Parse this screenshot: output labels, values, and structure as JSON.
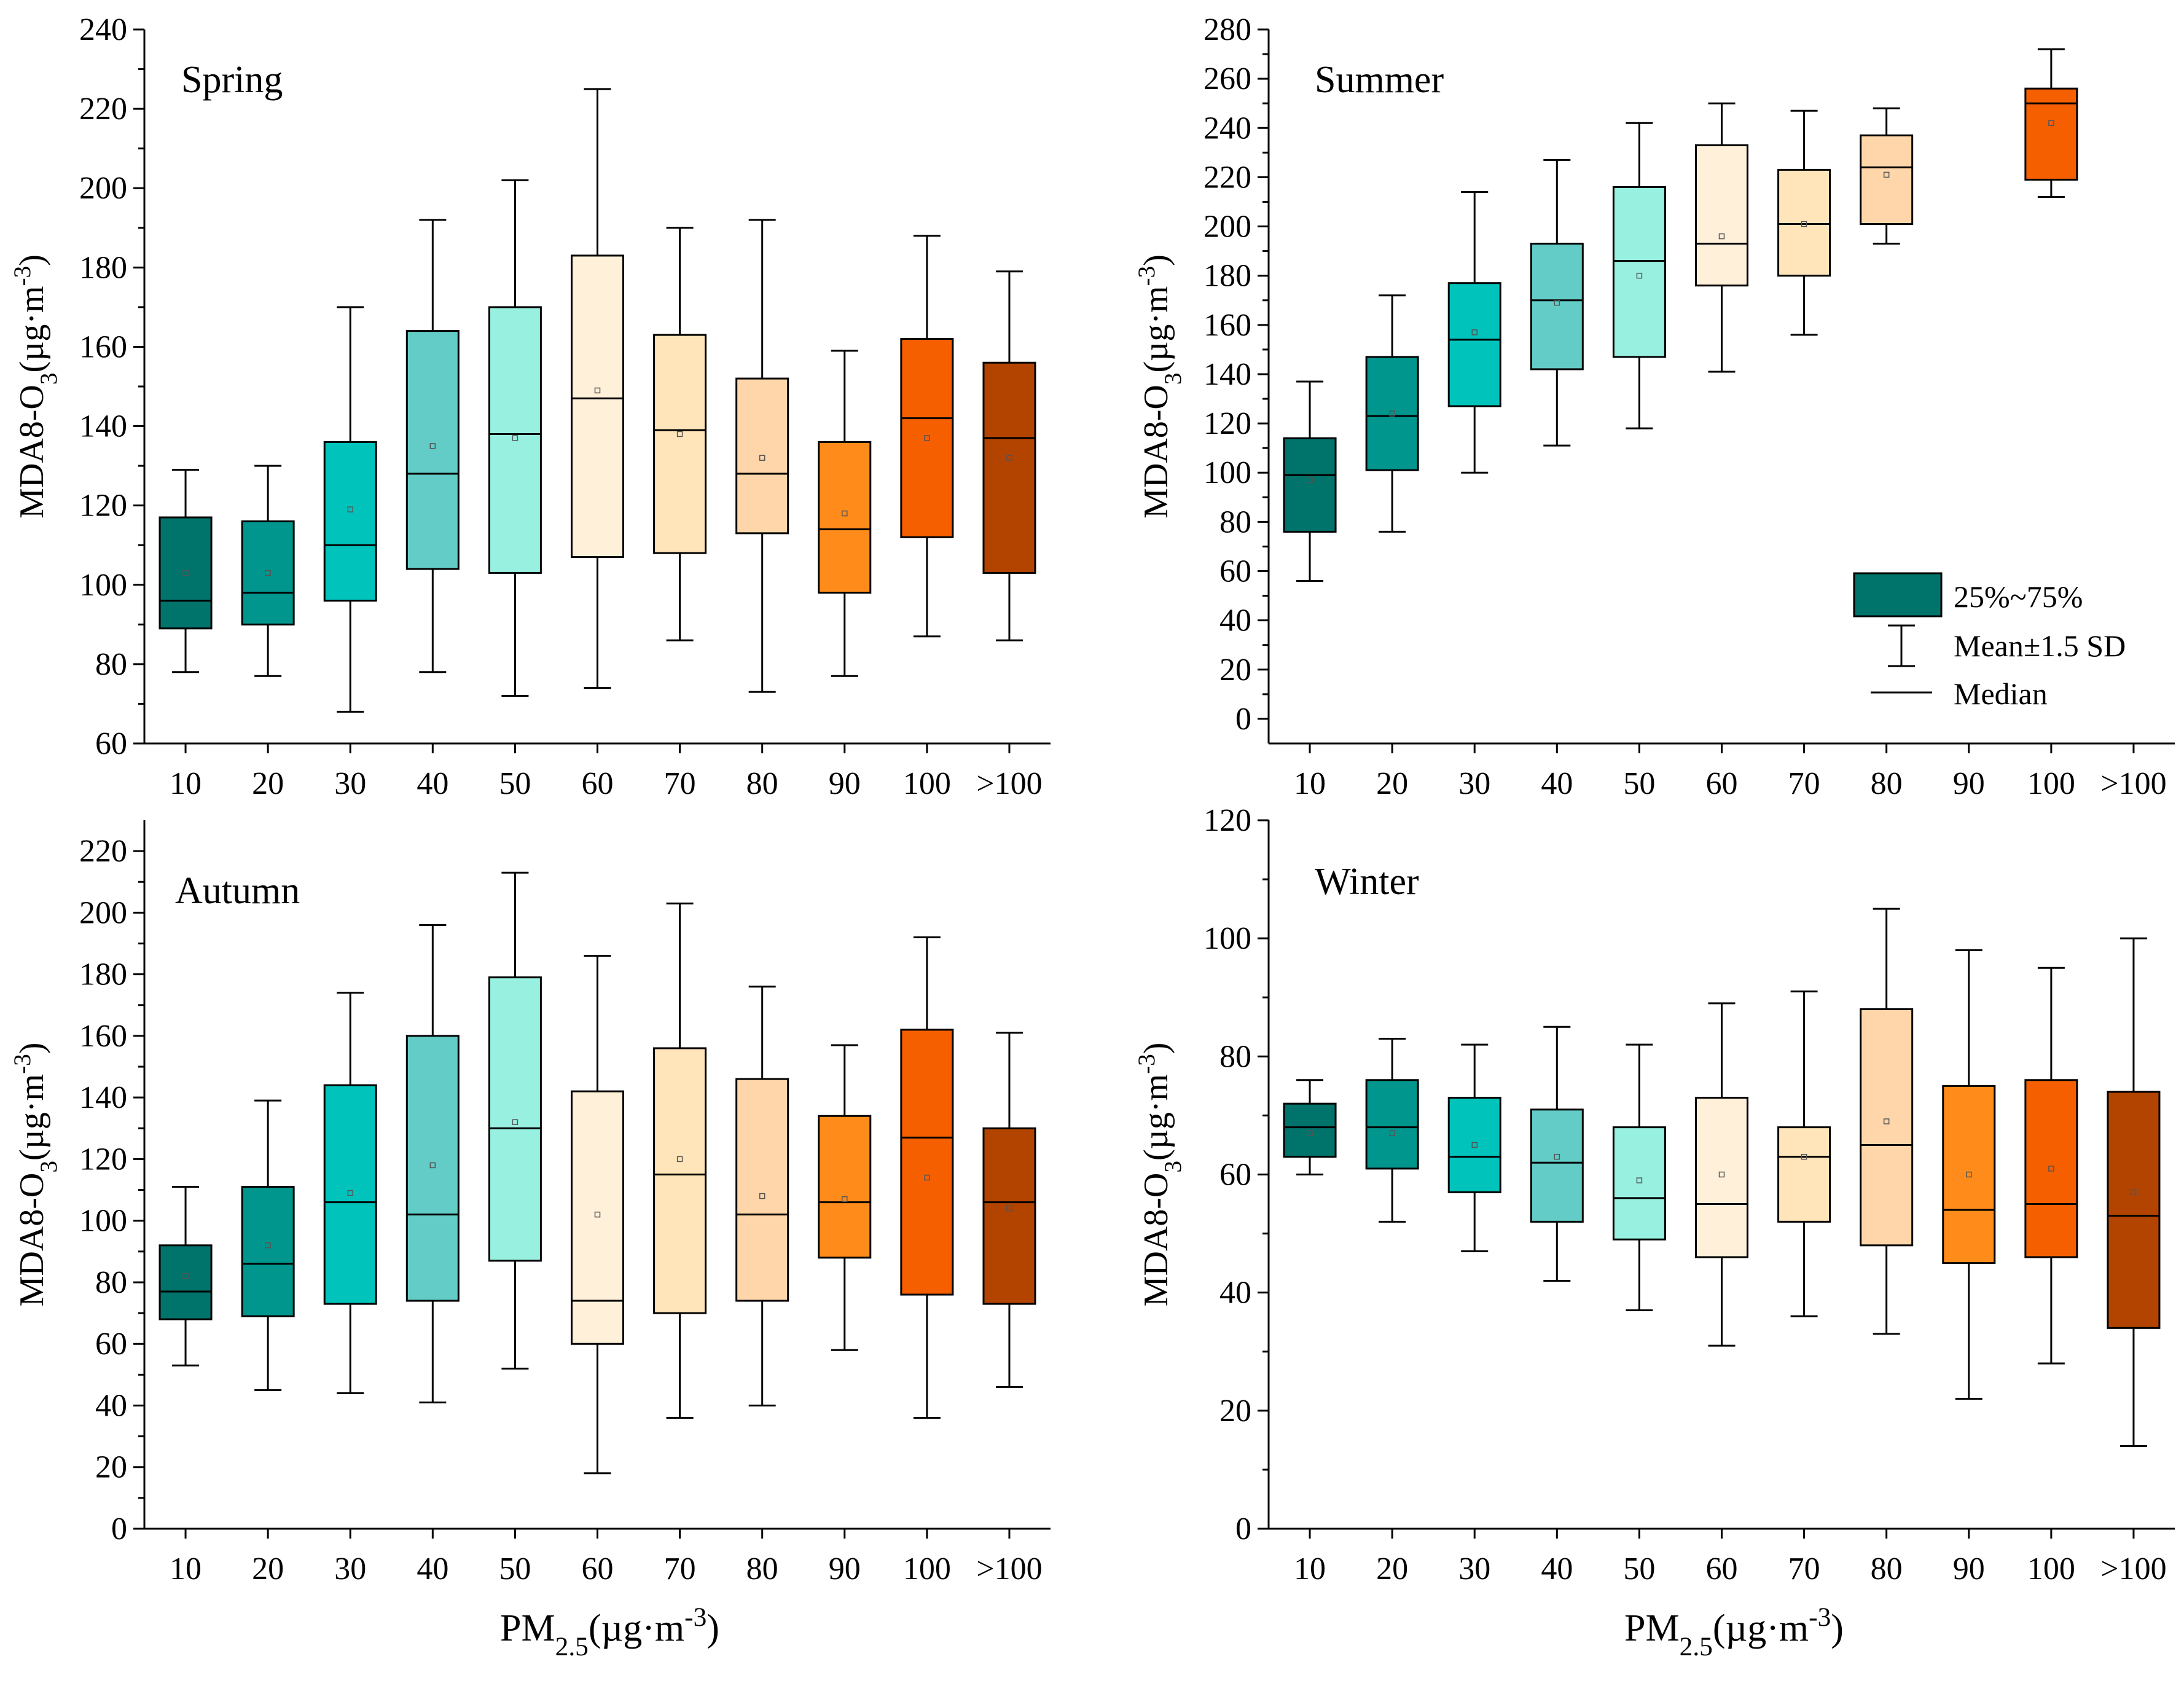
{
  "chart_data": [
    {
      "type": "box",
      "panel": "top-left",
      "title": "Spring",
      "xlabel": "PM2.5(µg·m-3)",
      "ylabel": "MDA8-O3(µg·m-3)",
      "ylim": [
        60,
        240
      ],
      "yticks": [
        60,
        80,
        100,
        120,
        140,
        160,
        180,
        200,
        220,
        240
      ],
      "yticks_labels": [
        "60",
        "80",
        "100",
        "120",
        "140",
        "160",
        "180",
        "200",
        "220",
        "240"
      ],
      "categories": [
        "10",
        "20",
        "30",
        "40",
        "50",
        "60",
        "70",
        "80",
        "90",
        "100",
        ">100"
      ],
      "boxes": [
        {
          "category": "10",
          "whisker_low": 78,
          "q1": 89,
          "median": 96,
          "mean": 103,
          "q3": 117,
          "whisker_high": 129
        },
        {
          "category": "20",
          "whisker_low": 77,
          "q1": 90,
          "median": 98,
          "mean": 103,
          "q3": 116,
          "whisker_high": 130
        },
        {
          "category": "30",
          "whisker_low": 68,
          "q1": 96,
          "median": 110,
          "mean": 119,
          "q3": 136,
          "whisker_high": 170
        },
        {
          "category": "40",
          "whisker_low": 78,
          "q1": 104,
          "median": 128,
          "mean": 135,
          "q3": 164,
          "whisker_high": 192
        },
        {
          "category": "50",
          "whisker_low": 72,
          "q1": 103,
          "median": 138,
          "mean": 137,
          "q3": 170,
          "whisker_high": 202
        },
        {
          "category": "60",
          "whisker_low": 74,
          "q1": 107,
          "median": 147,
          "mean": 149,
          "q3": 183,
          "whisker_high": 225
        },
        {
          "category": "70",
          "whisker_low": 86,
          "q1": 108,
          "median": 139,
          "mean": 138,
          "q3": 163,
          "whisker_high": 190
        },
        {
          "category": "80",
          "whisker_low": 73,
          "q1": 113,
          "median": 128,
          "mean": 132,
          "q3": 152,
          "whisker_high": 192
        },
        {
          "category": "90",
          "whisker_low": 77,
          "q1": 98,
          "median": 114,
          "mean": 118,
          "q3": 136,
          "whisker_high": 159
        },
        {
          "category": "100",
          "whisker_low": 87,
          "q1": 112,
          "median": 142,
          "mean": 137,
          "q3": 162,
          "whisker_high": 188
        },
        {
          "category": ">100",
          "whisker_low": 86,
          "q1": 103,
          "median": 137,
          "mean": 132,
          "q3": 156,
          "whisker_high": 179
        }
      ]
    },
    {
      "type": "box",
      "panel": "top-right",
      "title": "Summer",
      "xlabel": "PM2.5(µg·m-3)",
      "ylabel": "MDA8-O3(µg·m-3)",
      "ylim": [
        -10,
        280
      ],
      "yticks": [
        0,
        20,
        40,
        60,
        80,
        100,
        120,
        140,
        160,
        180,
        200,
        220,
        240,
        260,
        280
      ],
      "yticks_labels": [
        "0",
        "20",
        "40",
        "60",
        "80",
        "100",
        "120",
        "140",
        "160",
        "180",
        "200",
        "220",
        "240",
        "260",
        "280"
      ],
      "categories": [
        "10",
        "20",
        "30",
        "40",
        "50",
        "60",
        "70",
        "80",
        "90",
        "100",
        ">100"
      ],
      "boxes": [
        {
          "category": "10",
          "whisker_low": 56,
          "q1": 76,
          "median": 99,
          "mean": 97,
          "q3": 114,
          "whisker_high": 137
        },
        {
          "category": "20",
          "whisker_low": 76,
          "q1": 101,
          "median": 123,
          "mean": 124,
          "q3": 147,
          "whisker_high": 172
        },
        {
          "category": "30",
          "whisker_low": 100,
          "q1": 127,
          "median": 154,
          "mean": 157,
          "q3": 177,
          "whisker_high": 214
        },
        {
          "category": "40",
          "whisker_low": 111,
          "q1": 142,
          "median": 170,
          "mean": 169,
          "q3": 193,
          "whisker_high": 227
        },
        {
          "category": "50",
          "whisker_low": 118,
          "q1": 147,
          "median": 186,
          "mean": 180,
          "q3": 216,
          "whisker_high": 242
        },
        {
          "category": "60",
          "whisker_low": 141,
          "q1": 176,
          "median": 193,
          "mean": 196,
          "q3": 233,
          "whisker_high": 250
        },
        {
          "category": "70",
          "whisker_low": 156,
          "q1": 180,
          "median": 201,
          "mean": 201,
          "q3": 223,
          "whisker_high": 247
        },
        {
          "category": "80",
          "whisker_low": 193,
          "q1": 201,
          "median": 224,
          "mean": 221,
          "q3": 237,
          "whisker_high": 248
        },
        {
          "category": "100",
          "whisker_low": 212,
          "q1": 219,
          "median": 250,
          "mean": 242,
          "q3": 256,
          "whisker_high": 272
        }
      ],
      "legend": {
        "placement": "bottom-right",
        "entries": [
          "25%~75%",
          "Mean±1.5 SD",
          "Median"
        ]
      }
    },
    {
      "type": "box",
      "panel": "bottom-left",
      "title": "Autumn",
      "xlabel": "PM2.5(µg·m-3)",
      "ylabel": "MDA8-O3(µg·m-3)",
      "ylim": [
        0,
        230
      ],
      "yticks": [
        0,
        20,
        40,
        60,
        80,
        100,
        120,
        140,
        160,
        180,
        200,
        220
      ],
      "yticks_labels": [
        "0",
        "20",
        "40",
        "60",
        "80",
        "100",
        "120",
        "140",
        "160",
        "180",
        "200",
        "220"
      ],
      "categories": [
        "10",
        "20",
        "30",
        "40",
        "50",
        "60",
        "70",
        "80",
        "90",
        "100",
        ">100"
      ],
      "boxes": [
        {
          "category": "10",
          "whisker_low": 53,
          "q1": 68,
          "median": 77,
          "mean": 82,
          "q3": 92,
          "whisker_high": 111
        },
        {
          "category": "20",
          "whisker_low": 45,
          "q1": 69,
          "median": 86,
          "mean": 92,
          "q3": 111,
          "whisker_high": 139
        },
        {
          "category": "30",
          "whisker_low": 44,
          "q1": 73,
          "median": 106,
          "mean": 109,
          "q3": 144,
          "whisker_high": 174
        },
        {
          "category": "40",
          "whisker_low": 41,
          "q1": 74,
          "median": 102,
          "mean": 118,
          "q3": 160,
          "whisker_high": 196
        },
        {
          "category": "50",
          "whisker_low": 52,
          "q1": 87,
          "median": 130,
          "mean": 132,
          "q3": 179,
          "whisker_high": 213
        },
        {
          "category": "60",
          "whisker_low": 18,
          "q1": 60,
          "median": 74,
          "mean": 102,
          "q3": 142,
          "whisker_high": 186
        },
        {
          "category": "70",
          "whisker_low": 36,
          "q1": 70,
          "median": 115,
          "mean": 120,
          "q3": 156,
          "whisker_high": 203
        },
        {
          "category": "80",
          "whisker_low": 40,
          "q1": 74,
          "median": 102,
          "mean": 108,
          "q3": 146,
          "whisker_high": 176
        },
        {
          "category": "90",
          "whisker_low": 58,
          "q1": 88,
          "median": 106,
          "mean": 107,
          "q3": 134,
          "whisker_high": 157
        },
        {
          "category": "100",
          "whisker_low": 36,
          "q1": 76,
          "median": 127,
          "mean": 114,
          "q3": 162,
          "whisker_high": 192
        },
        {
          "category": ">100",
          "whisker_low": 46,
          "q1": 73,
          "median": 106,
          "mean": 104,
          "q3": 130,
          "whisker_high": 161
        }
      ]
    },
    {
      "type": "box",
      "panel": "bottom-right",
      "title": "Winter",
      "xlabel": "PM2.5(µg·m-3)",
      "ylabel": "MDA8-O3(µg·m-3)",
      "ylim": [
        0,
        120
      ],
      "yticks": [
        0,
        20,
        40,
        60,
        80,
        100,
        120
      ],
      "yticks_labels": [
        "0",
        "20",
        "40",
        "60",
        "80",
        "100",
        "120"
      ],
      "categories": [
        "10",
        "20",
        "30",
        "40",
        "50",
        "60",
        "70",
        "80",
        "90",
        "100",
        ">100"
      ],
      "boxes": [
        {
          "category": "10",
          "whisker_low": 60,
          "q1": 63,
          "median": 68,
          "mean": 67,
          "q3": 72,
          "whisker_high": 76
        },
        {
          "category": "20",
          "whisker_low": 52,
          "q1": 61,
          "median": 68,
          "mean": 67,
          "q3": 76,
          "whisker_high": 83
        },
        {
          "category": "30",
          "whisker_low": 47,
          "q1": 57,
          "median": 63,
          "mean": 65,
          "q3": 73,
          "whisker_high": 82
        },
        {
          "category": "40",
          "whisker_low": 42,
          "q1": 52,
          "median": 62,
          "mean": 63,
          "q3": 71,
          "whisker_high": 85
        },
        {
          "category": "50",
          "whisker_low": 37,
          "q1": 49,
          "median": 56,
          "mean": 59,
          "q3": 68,
          "whisker_high": 82
        },
        {
          "category": "60",
          "whisker_low": 31,
          "q1": 46,
          "median": 55,
          "mean": 60,
          "q3": 73,
          "whisker_high": 89
        },
        {
          "category": "70",
          "whisker_low": 36,
          "q1": 52,
          "median": 63,
          "mean": 63,
          "q3": 68,
          "whisker_high": 91
        },
        {
          "category": "80",
          "whisker_low": 33,
          "q1": 48,
          "median": 65,
          "mean": 69,
          "q3": 88,
          "whisker_high": 105
        },
        {
          "category": "90",
          "whisker_low": 22,
          "q1": 45,
          "median": 54,
          "mean": 60,
          "q3": 75,
          "whisker_high": 98
        },
        {
          "category": "100",
          "whisker_low": 28,
          "q1": 46,
          "median": 55,
          "mean": 61,
          "q3": 76,
          "whisker_high": 95
        },
        {
          "category": ">100",
          "whisker_low": 14,
          "q1": 34,
          "median": 53,
          "mean": 57,
          "q3": 74,
          "whisker_high": 100
        }
      ]
    }
  ],
  "category_colors": {
    "10": "#00736b",
    "20": "#00968e",
    "30": "#00c4bc",
    "40": "#63ccc7",
    "50": "#98f0e1",
    "60": "#fff0da",
    "70": "#ffe5b9",
    "80": "#ffd6aa",
    "90": "#ff8c1a",
    "100": "#f55f00",
    ">100": "#b34400"
  },
  "legend_color": "#00736b"
}
